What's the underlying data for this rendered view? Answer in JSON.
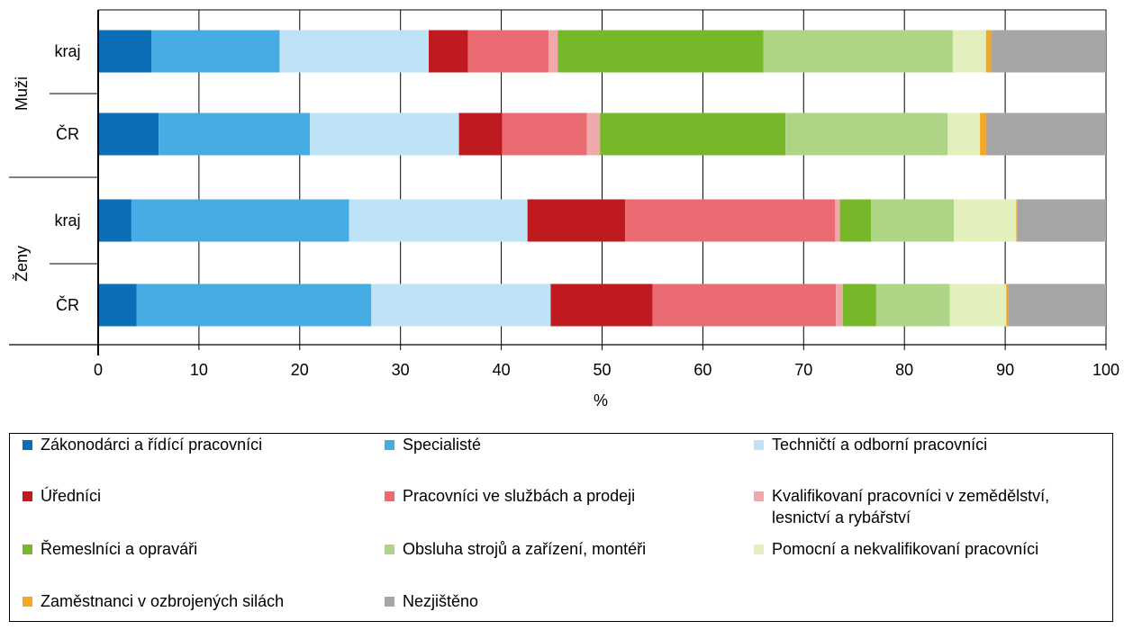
{
  "chart_data": {
    "type": "bar",
    "orientation": "horizontal",
    "stacked": true,
    "xlabel": "%",
    "xlim": [
      0,
      100
    ],
    "x_ticks": [
      "0",
      "10",
      "20",
      "30",
      "40",
      "50",
      "60",
      "70",
      "80",
      "90",
      "100"
    ],
    "groups": [
      {
        "name": "Muži",
        "categories": [
          "kraj",
          "ČR"
        ]
      },
      {
        "name": "Ženy",
        "categories": [
          "kraj",
          "ČR"
        ]
      }
    ],
    "categories": [
      "Muži – kraj",
      "Muži – ČR",
      "Ženy – kraj",
      "Ženy – ČR"
    ],
    "series": [
      {
        "name": "Zákonodárci a řídící pracovníci",
        "color": "#0a6fb6",
        "values": [
          5.3,
          6.0,
          3.3,
          3.8
        ]
      },
      {
        "name": "Specialisté",
        "color": "#46ace4",
        "values": [
          12.7,
          15.0,
          21.6,
          23.3
        ]
      },
      {
        "name": "Techničtí a odborní pracovníci",
        "color": "#bee3f6",
        "values": [
          14.8,
          14.8,
          17.7,
          17.8
        ]
      },
      {
        "name": "Úředníci",
        "color": "#bf1a20",
        "values": [
          3.9,
          4.3,
          9.7,
          10.1
        ]
      },
      {
        "name": "Pracovníci ve službách a prodeji",
        "color": "#ea6b71",
        "values": [
          8.0,
          8.4,
          20.8,
          18.2
        ]
      },
      {
        "name": "Kvalifikovaní pracovníci v zemědělství,\nlesnictví a rybářství",
        "color": "#f0a8ab",
        "values": [
          0.9,
          1.3,
          0.5,
          0.7
        ]
      },
      {
        "name": "Řemeslníci a opraváři",
        "color": "#77b82a",
        "values": [
          20.4,
          18.4,
          3.1,
          3.3
        ]
      },
      {
        "name": "Obsluha strojů a zařízení, montéři",
        "color": "#aed586",
        "values": [
          18.8,
          16.1,
          8.2,
          7.3
        ]
      },
      {
        "name": "Pomocní a nekvalifikovaní pracovníci",
        "color": "#e3f0bd",
        "values": [
          3.3,
          3.2,
          6.2,
          5.6
        ]
      },
      {
        "name": "Zaměstnanci v ozbrojených silách",
        "color": "#f5a623",
        "values": [
          0.5,
          0.6,
          0.1,
          0.2
        ]
      },
      {
        "name": "Nezjištěno",
        "color": "#a6a6a6",
        "values": [
          11.4,
          11.9,
          8.8,
          9.7
        ]
      }
    ],
    "grid": true,
    "legend_position": "bottom"
  }
}
